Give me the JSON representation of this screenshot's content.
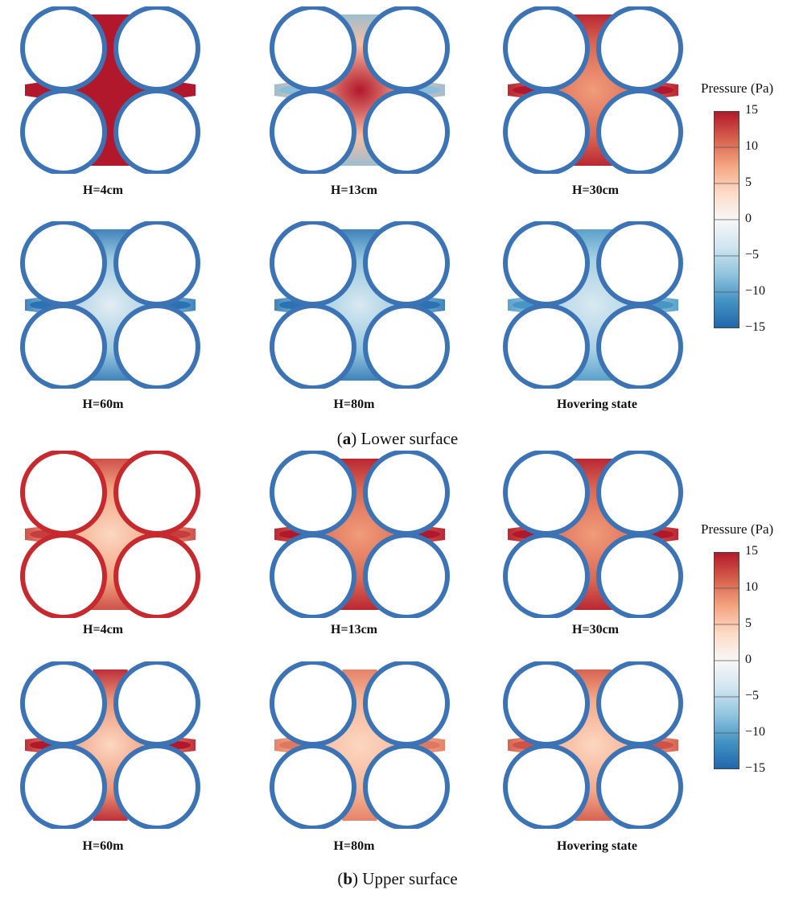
{
  "sections": [
    {
      "caption_letter": "a",
      "caption_text": " Lower surface",
      "panels": [
        {
          "label": "H=4cm",
          "center_value": 15,
          "channel_value": 15,
          "width_scale": 1.5
        },
        {
          "label": "H=13cm",
          "center_value": 15,
          "channel_value": -8,
          "width_scale": 1.25
        },
        {
          "label": "H=30cm",
          "center_value": 8,
          "channel_value": 15,
          "width_scale": 1.0
        },
        {
          "label": "H=60m",
          "center_value": -2,
          "channel_value": -14,
          "width_scale": 1.0
        },
        {
          "label": "H=80m",
          "center_value": -3,
          "channel_value": -14,
          "width_scale": 1.0
        },
        {
          "label": "Hovering state",
          "center_value": -3,
          "channel_value": -11,
          "width_scale": 1.0
        }
      ]
    },
    {
      "caption_letter": "b",
      "caption_text": " Upper surface",
      "panels": [
        {
          "label": "H=4cm",
          "center_value": 4,
          "channel_value": 13,
          "width_scale": 1.0
        },
        {
          "label": "H=13cm",
          "center_value": 8,
          "channel_value": 15,
          "width_scale": 1.0
        },
        {
          "label": "H=30cm",
          "center_value": 8,
          "channel_value": 15,
          "width_scale": 1.0
        },
        {
          "label": "H=60m",
          "center_value": 4,
          "channel_value": 15,
          "width_scale": 0.9
        },
        {
          "label": "H=80m",
          "center_value": 4,
          "channel_value": 10,
          "width_scale": 0.9
        },
        {
          "label": "Hovering state",
          "center_value": 4,
          "channel_value": 12,
          "width_scale": 0.95
        }
      ]
    }
  ],
  "colorbar": {
    "title": "Pressure (Pa)",
    "ticks": [
      "15",
      "10",
      "5",
      "0",
      "−5",
      "−10",
      "−15"
    ],
    "colors": [
      "#b2182b",
      "#d6604d",
      "#f4a582",
      "#fddbc7",
      "#f7f7f7",
      "#d1e5f0",
      "#92c5de",
      "#4393c3",
      "#2166ac"
    ]
  },
  "colors": {
    "ring": "#3b73b5",
    "ring_hot": "#c62a2e"
  }
}
